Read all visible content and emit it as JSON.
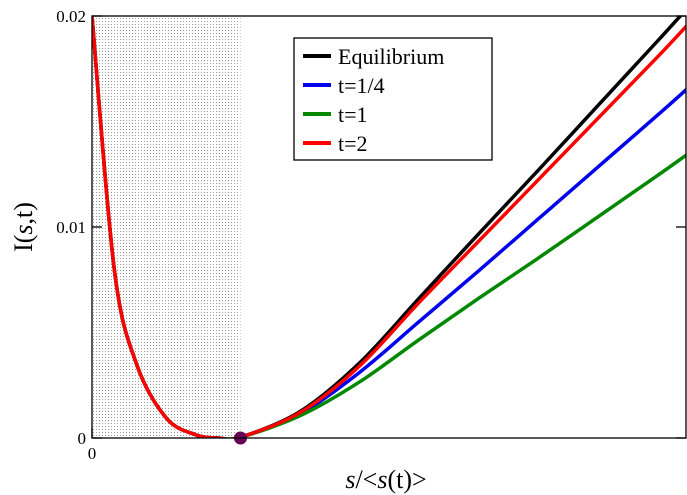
{
  "chart_data": {
    "type": "line",
    "xlabel_parts": [
      {
        "text": "s",
        "italic": true
      },
      {
        "text": "/<",
        "italic": false
      },
      {
        "text": "s",
        "italic": true
      },
      {
        "text": "(t)>",
        "italic": false
      }
    ],
    "ylabel_parts": [
      {
        "text": "I(",
        "italic": false
      },
      {
        "text": "s",
        "italic": true
      },
      {
        "text": ",t)",
        "italic": false
      }
    ],
    "xlim": [
      0,
      4
    ],
    "ylim": [
      0,
      0.02
    ],
    "x_ticks": [
      {
        "value": 0,
        "label": "0"
      }
    ],
    "y_ticks": [
      {
        "value": 0,
        "label": "0"
      },
      {
        "value": 0.01,
        "label": "0.01"
      },
      {
        "value": 0.02,
        "label": "0.02"
      }
    ],
    "shaded_region": {
      "x": [
        0,
        1
      ],
      "pattern": "dotted"
    },
    "marker": {
      "x": 1,
      "y": 0,
      "color": "#660055"
    },
    "legend_position": "top-center",
    "series": [
      {
        "name": "Equilibrium",
        "color": "#000000",
        "x": [
          0.0,
          0.15,
          0.3,
          0.5,
          0.7,
          0.85,
          1.0,
          1.4,
          1.8,
          2.2,
          2.6,
          3.0,
          3.4,
          3.8,
          4.0
        ],
        "y": [
          0.02,
          0.008,
          0.0035,
          0.00095,
          0.00015,
          0.0,
          4e-05,
          0.00125,
          0.00355,
          0.0066,
          0.00965,
          0.01265,
          0.0157,
          0.01875,
          0.0203
        ]
      },
      {
        "name": "t=1/4",
        "color": "#0000ee",
        "x": [
          0.0,
          0.15,
          0.3,
          0.5,
          0.7,
          0.85,
          1.0,
          1.4,
          1.8,
          2.2,
          2.6,
          3.0,
          3.4,
          3.8,
          4.0
        ],
        "y": [
          0.02,
          0.008,
          0.0035,
          0.00095,
          0.00015,
          0.0,
          4e-05,
          0.00115,
          0.0031,
          0.0055,
          0.0079,
          0.01035,
          0.0128,
          0.01525,
          0.0165
        ]
      },
      {
        "name": "t=1",
        "color": "#008800",
        "x": [
          0.0,
          0.15,
          0.3,
          0.5,
          0.7,
          0.85,
          1.0,
          1.4,
          1.8,
          2.2,
          2.6,
          3.0,
          3.4,
          3.8,
          4.0
        ],
        "y": [
          0.02,
          0.008,
          0.0035,
          0.00095,
          0.00015,
          0.0,
          4e-05,
          0.00105,
          0.00265,
          0.00465,
          0.0066,
          0.0085,
          0.01045,
          0.0124,
          0.0134
        ]
      },
      {
        "name": "t=2",
        "color": "#ff0000",
        "x": [
          0.0,
          0.15,
          0.3,
          0.5,
          0.7,
          0.85,
          1.0,
          1.4,
          1.8,
          2.2,
          2.6,
          3.0,
          3.4,
          3.8,
          4.0
        ],
        "y": [
          0.02,
          0.008,
          0.0035,
          0.00095,
          0.00015,
          0.0,
          4e-05,
          0.0012,
          0.0034,
          0.0064,
          0.0093,
          0.0122,
          0.0151,
          0.018,
          0.0195
        ]
      }
    ]
  }
}
